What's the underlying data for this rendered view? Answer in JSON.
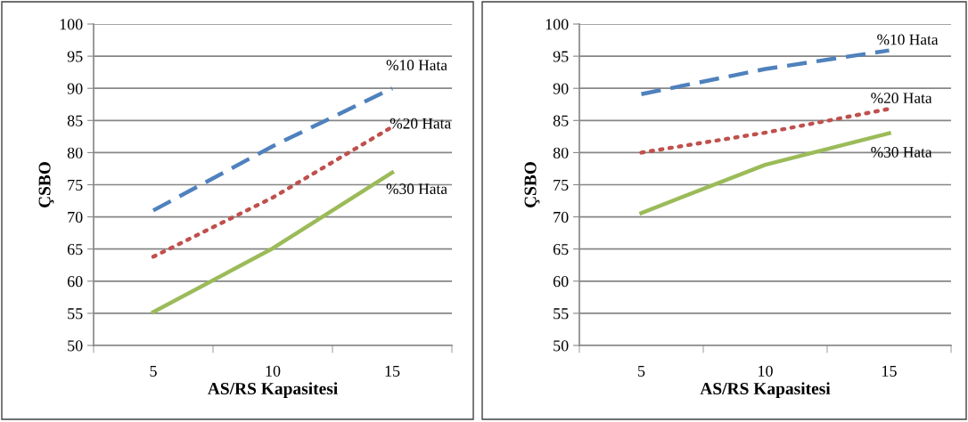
{
  "chart_data": [
    {
      "type": "line",
      "xlabel": "AS/RS Kapasitesi",
      "ylabel": "ÇSBO",
      "categories": [
        "5",
        "10",
        "15"
      ],
      "ylim": [
        50,
        100
      ],
      "yticks": [
        50,
        55,
        60,
        65,
        70,
        75,
        80,
        85,
        90,
        95,
        100
      ],
      "grid": "y",
      "legend": false,
      "series": [
        {
          "name": "%10 Hata",
          "color": "#4f81bd",
          "line_style": "dashed",
          "values": [
            71,
            81,
            90
          ]
        },
        {
          "name": "%20 Hata",
          "color": "#c0504d",
          "line_style": "dotted",
          "values": [
            63.8,
            73,
            84
          ]
        },
        {
          "name": "%30 Hata",
          "color": "#9bbb59",
          "line_style": "solid",
          "values": [
            55.2,
            65.1,
            76.9
          ]
        }
      ]
    },
    {
      "type": "line",
      "xlabel": "AS/RS Kapasitesi",
      "ylabel": "ÇSBO",
      "categories": [
        "5",
        "10",
        "15"
      ],
      "ylim": [
        50,
        100
      ],
      "yticks": [
        50,
        55,
        60,
        65,
        70,
        75,
        80,
        85,
        90,
        95,
        100
      ],
      "grid": "y",
      "legend": false,
      "series": [
        {
          "name": "%10 Hata",
          "color": "#4f81bd",
          "line_style": "dashed",
          "values": [
            89.1,
            93,
            95.9
          ]
        },
        {
          "name": "%20 Hata",
          "color": "#c0504d",
          "line_style": "dotted",
          "values": [
            80,
            83.1,
            86.8
          ]
        },
        {
          "name": "%30 Hata",
          "color": "#9bbb59",
          "line_style": "solid",
          "values": [
            70.6,
            78.1,
            83
          ]
        }
      ]
    }
  ]
}
